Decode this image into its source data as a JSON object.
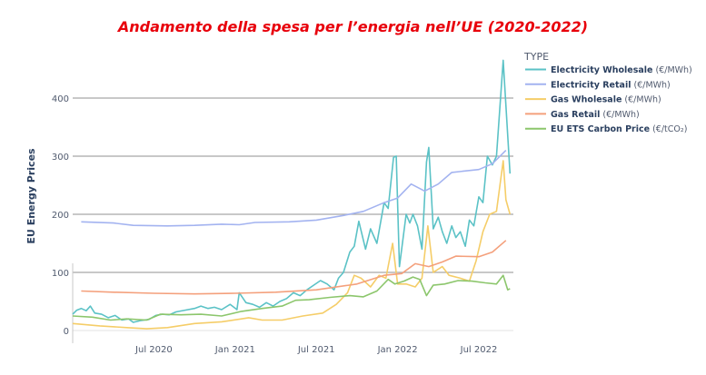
{
  "chart_data": {
    "type": "line",
    "title": "Andamento della spesa per l’energia nell’UE (2020-2022)",
    "ylabel": "EU Energy Prices",
    "xlabel": "",
    "ylim": [
      -20,
      470
    ],
    "yticks": [
      0,
      100,
      200,
      300,
      400
    ],
    "xticks": [
      {
        "date": "2020-07-01",
        "label": "Jul 2020"
      },
      {
        "date": "2021-01-01",
        "label": "Jan 2021"
      },
      {
        "date": "2021-07-01",
        "label": "Jul 2021"
      },
      {
        "date": "2022-01-01",
        "label": "Jan 2022"
      },
      {
        "date": "2022-07-01",
        "label": "Jul 2022"
      }
    ],
    "grid": true,
    "legend": {
      "title": "TYPE",
      "placement": "right"
    },
    "series": [
      {
        "name": "Electricity Wholesale",
        "unit": "(€/MWh)",
        "color": "#5bc2c6",
        "points": [
          [
            "2020-01-01",
            28
          ],
          [
            "2020-01-10",
            35
          ],
          [
            "2020-01-20",
            38
          ],
          [
            "2020-02-01",
            34
          ],
          [
            "2020-02-10",
            42
          ],
          [
            "2020-02-20",
            30
          ],
          [
            "2020-03-05",
            28
          ],
          [
            "2020-03-20",
            22
          ],
          [
            "2020-04-05",
            26
          ],
          [
            "2020-04-20",
            18
          ],
          [
            "2020-05-05",
            20
          ],
          [
            "2020-05-15",
            14
          ],
          [
            "2020-06-01",
            17
          ],
          [
            "2020-06-20",
            19
          ],
          [
            "2020-07-05",
            26
          ],
          [
            "2020-07-20",
            28
          ],
          [
            "2020-08-05",
            27
          ],
          [
            "2020-08-20",
            32
          ],
          [
            "2020-09-10",
            35
          ],
          [
            "2020-10-01",
            38
          ],
          [
            "2020-10-15",
            42
          ],
          [
            "2020-11-01",
            38
          ],
          [
            "2020-11-15",
            40
          ],
          [
            "2020-12-01",
            36
          ],
          [
            "2020-12-20",
            45
          ],
          [
            "2021-01-05",
            36
          ],
          [
            "2021-01-10",
            65
          ],
          [
            "2021-01-25",
            48
          ],
          [
            "2021-02-10",
            45
          ],
          [
            "2021-02-25",
            40
          ],
          [
            "2021-03-10",
            48
          ],
          [
            "2021-03-25",
            42
          ],
          [
            "2021-04-10",
            50
          ],
          [
            "2021-04-25",
            55
          ],
          [
            "2021-05-10",
            65
          ],
          [
            "2021-05-25",
            60
          ],
          [
            "2021-06-10",
            70
          ],
          [
            "2021-06-25",
            78
          ],
          [
            "2021-07-10",
            86
          ],
          [
            "2021-07-25",
            80
          ],
          [
            "2021-08-10",
            70
          ],
          [
            "2021-08-20",
            90
          ],
          [
            "2021-09-01",
            100
          ],
          [
            "2021-09-15",
            135
          ],
          [
            "2021-09-25",
            145
          ],
          [
            "2021-10-05",
            188
          ],
          [
            "2021-10-20",
            140
          ],
          [
            "2021-11-01",
            175
          ],
          [
            "2021-11-15",
            150
          ],
          [
            "2021-12-01",
            220
          ],
          [
            "2021-12-10",
            210
          ],
          [
            "2021-12-22",
            298
          ],
          [
            "2021-12-28",
            300
          ],
          [
            "2022-01-05",
            110
          ],
          [
            "2022-01-20",
            200
          ],
          [
            "2022-01-28",
            185
          ],
          [
            "2022-02-05",
            200
          ],
          [
            "2022-02-15",
            180
          ],
          [
            "2022-02-25",
            140
          ],
          [
            "2022-03-05",
            290
          ],
          [
            "2022-03-10",
            315
          ],
          [
            "2022-03-20",
            175
          ],
          [
            "2022-04-01",
            195
          ],
          [
            "2022-04-10",
            170
          ],
          [
            "2022-04-20",
            150
          ],
          [
            "2022-05-01",
            180
          ],
          [
            "2022-05-10",
            160
          ],
          [
            "2022-05-20",
            170
          ],
          [
            "2022-06-01",
            145
          ],
          [
            "2022-06-10",
            190
          ],
          [
            "2022-06-20",
            180
          ],
          [
            "2022-07-01",
            230
          ],
          [
            "2022-07-10",
            220
          ],
          [
            "2022-07-20",
            300
          ],
          [
            "2022-08-01",
            285
          ],
          [
            "2022-08-10",
            300
          ],
          [
            "2022-08-25",
            465
          ],
          [
            "2022-09-10",
            270
          ]
        ]
      },
      {
        "name": "Electricity Retail",
        "unit": "(€/MWh)",
        "color": "#a3b3f0",
        "points": [
          [
            "2020-01-20",
            187
          ],
          [
            "2020-04-01",
            185
          ],
          [
            "2020-05-15",
            181
          ],
          [
            "2020-08-01",
            180
          ],
          [
            "2020-10-01",
            181
          ],
          [
            "2020-12-01",
            183
          ],
          [
            "2021-01-10",
            182
          ],
          [
            "2021-02-15",
            186
          ],
          [
            "2021-05-01",
            187
          ],
          [
            "2021-07-01",
            190
          ],
          [
            "2021-09-01",
            198
          ],
          [
            "2021-10-15",
            205
          ],
          [
            "2021-12-01",
            220
          ],
          [
            "2022-01-01",
            228
          ],
          [
            "2022-02-01",
            252
          ],
          [
            "2022-03-01",
            240
          ],
          [
            "2022-04-01",
            252
          ],
          [
            "2022-05-01",
            272
          ],
          [
            "2022-07-01",
            277
          ],
          [
            "2022-08-01",
            287
          ],
          [
            "2022-09-01",
            310
          ]
        ]
      },
      {
        "name": "Gas Wholesale",
        "unit": "(€/MWh)",
        "color": "#f5cd68",
        "points": [
          [
            "2020-01-01",
            12
          ],
          [
            "2020-03-01",
            8
          ],
          [
            "2020-05-01",
            5
          ],
          [
            "2020-06-15",
            3
          ],
          [
            "2020-08-01",
            5
          ],
          [
            "2020-10-01",
            12
          ],
          [
            "2020-12-01",
            15
          ],
          [
            "2021-01-15",
            20
          ],
          [
            "2021-02-01",
            22
          ],
          [
            "2021-03-01",
            18
          ],
          [
            "2021-04-15",
            18
          ],
          [
            "2021-06-01",
            25
          ],
          [
            "2021-07-15",
            30
          ],
          [
            "2021-08-15",
            45
          ],
          [
            "2021-09-10",
            65
          ],
          [
            "2021-09-25",
            95
          ],
          [
            "2021-10-10",
            90
          ],
          [
            "2021-11-01",
            75
          ],
          [
            "2021-11-20",
            95
          ],
          [
            "2021-12-05",
            90
          ],
          [
            "2021-12-20",
            150
          ],
          [
            "2022-01-01",
            80
          ],
          [
            "2022-01-20",
            80
          ],
          [
            "2022-02-10",
            75
          ],
          [
            "2022-02-25",
            90
          ],
          [
            "2022-03-08",
            180
          ],
          [
            "2022-03-20",
            100
          ],
          [
            "2022-04-10",
            110
          ],
          [
            "2022-04-25",
            95
          ],
          [
            "2022-05-20",
            90
          ],
          [
            "2022-06-10",
            85
          ],
          [
            "2022-06-25",
            120
          ],
          [
            "2022-07-10",
            170
          ],
          [
            "2022-07-25",
            200
          ],
          [
            "2022-08-10",
            205
          ],
          [
            "2022-08-25",
            292
          ],
          [
            "2022-09-01",
            225
          ],
          [
            "2022-09-10",
            200
          ]
        ]
      },
      {
        "name": "Gas Retail",
        "unit": "(€/MWh)",
        "color": "#f4a07c",
        "points": [
          [
            "2020-01-20",
            68
          ],
          [
            "2020-04-01",
            66
          ],
          [
            "2020-07-01",
            64
          ],
          [
            "2020-10-01",
            63
          ],
          [
            "2021-01-01",
            64
          ],
          [
            "2021-04-01",
            66
          ],
          [
            "2021-07-01",
            70
          ],
          [
            "2021-10-01",
            80
          ],
          [
            "2021-12-01",
            95
          ],
          [
            "2022-01-10",
            98
          ],
          [
            "2022-02-10",
            115
          ],
          [
            "2022-03-10",
            110
          ],
          [
            "2022-04-10",
            118
          ],
          [
            "2022-05-10",
            128
          ],
          [
            "2022-07-01",
            127
          ],
          [
            "2022-08-01",
            135
          ],
          [
            "2022-09-01",
            155
          ]
        ]
      },
      {
        "name": "EU ETS Carbon Price",
        "unit": "(€/tCO₂)",
        "color": "#8cc66c",
        "points": [
          [
            "2020-01-01",
            25
          ],
          [
            "2020-02-15",
            23
          ],
          [
            "2020-03-25",
            18
          ],
          [
            "2020-05-01",
            20
          ],
          [
            "2020-06-15",
            18
          ],
          [
            "2020-07-15",
            28
          ],
          [
            "2020-09-01",
            27
          ],
          [
            "2020-10-15",
            28
          ],
          [
            "2020-12-01",
            25
          ],
          [
            "2021-01-15",
            33
          ],
          [
            "2021-03-01",
            38
          ],
          [
            "2021-04-15",
            42
          ],
          [
            "2021-05-15",
            52
          ],
          [
            "2021-06-15",
            53
          ],
          [
            "2021-08-01",
            57
          ],
          [
            "2021-09-15",
            60
          ],
          [
            "2021-10-15",
            58
          ],
          [
            "2021-11-15",
            68
          ],
          [
            "2021-12-10",
            88
          ],
          [
            "2021-12-25",
            80
          ],
          [
            "2022-01-15",
            85
          ],
          [
            "2022-02-05",
            92
          ],
          [
            "2022-02-20",
            88
          ],
          [
            "2022-03-05",
            60
          ],
          [
            "2022-03-20",
            78
          ],
          [
            "2022-04-15",
            80
          ],
          [
            "2022-05-15",
            86
          ],
          [
            "2022-06-15",
            85
          ],
          [
            "2022-07-15",
            82
          ],
          [
            "2022-08-10",
            80
          ],
          [
            "2022-08-25",
            95
          ],
          [
            "2022-09-05",
            70
          ],
          [
            "2022-09-10",
            72
          ]
        ]
      }
    ]
  }
}
